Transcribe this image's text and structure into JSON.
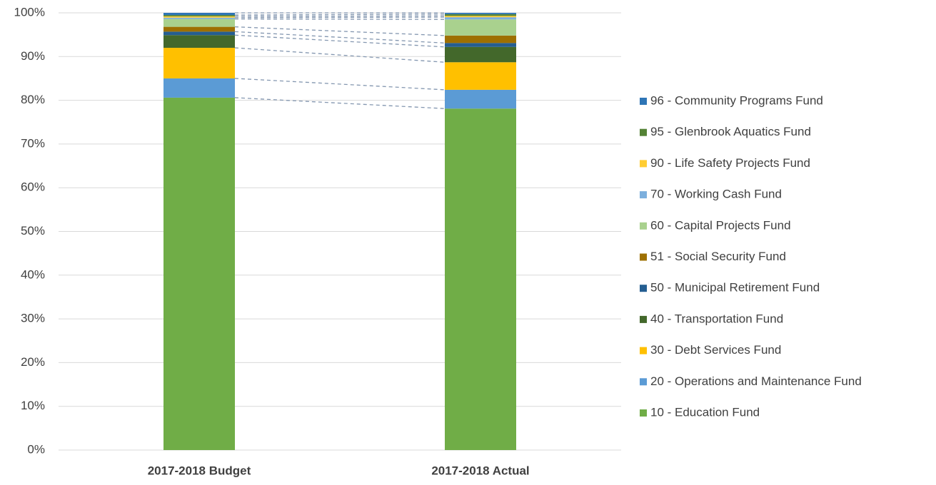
{
  "chart_data": {
    "type": "stacked_bar_100",
    "categories": [
      "2017-2018 Budget",
      "2017-2018 Actual"
    ],
    "series": [
      {
        "name": "10 - Education Fund",
        "color": "#70ad47",
        "values": [
          80.6,
          78.1
        ]
      },
      {
        "name": "20 - Operations and Maintenance Fund",
        "color": "#5b9bd5",
        "values": [
          4.4,
          4.3
        ]
      },
      {
        "name": "30 - Debt Services Fund",
        "color": "#ffc000",
        "values": [
          7.0,
          6.3
        ]
      },
      {
        "name": "40 - Transportation Fund",
        "color": "#43682b",
        "values": [
          2.9,
          3.5
        ]
      },
      {
        "name": "50 - Municipal Retirement Fund",
        "color": "#255e91",
        "values": [
          0.8,
          0.9
        ]
      },
      {
        "name": "51 - Social Security Fund",
        "color": "#9e7002",
        "values": [
          1.1,
          1.7
        ]
      },
      {
        "name": "60 - Capital Projects Fund",
        "color": "#a9d18e",
        "values": [
          1.8,
          3.7
        ]
      },
      {
        "name": "70 - Working Cash Fund",
        "color": "#7cafdd",
        "values": [
          0.3,
          0.5
        ]
      },
      {
        "name": "90 - Life Safety Projects Fund",
        "color": "#ffcd33",
        "values": [
          0.3,
          0.3
        ]
      },
      {
        "name": "95 - Glenbrook Aquatics Fund",
        "color": "#548235",
        "values": [
          0.3,
          0.4
        ]
      },
      {
        "name": "96 - Community Programs Fund",
        "color": "#2e75b6",
        "values": [
          0.5,
          0.3
        ]
      }
    ],
    "ylim": [
      0,
      100
    ],
    "yticks": [
      {
        "value": 0,
        "label": "0%"
      },
      {
        "value": 10,
        "label": "10%"
      },
      {
        "value": 20,
        "label": "20%"
      },
      {
        "value": 30,
        "label": "30%"
      },
      {
        "value": 40,
        "label": "40%"
      },
      {
        "value": 50,
        "label": "50%"
      },
      {
        "value": 60,
        "label": "60%"
      },
      {
        "value": 70,
        "label": "70%"
      },
      {
        "value": 80,
        "label": "80%"
      },
      {
        "value": 90,
        "label": "90%"
      },
      {
        "value": 100,
        "label": "100%"
      }
    ],
    "grid": true,
    "legend": "right"
  }
}
